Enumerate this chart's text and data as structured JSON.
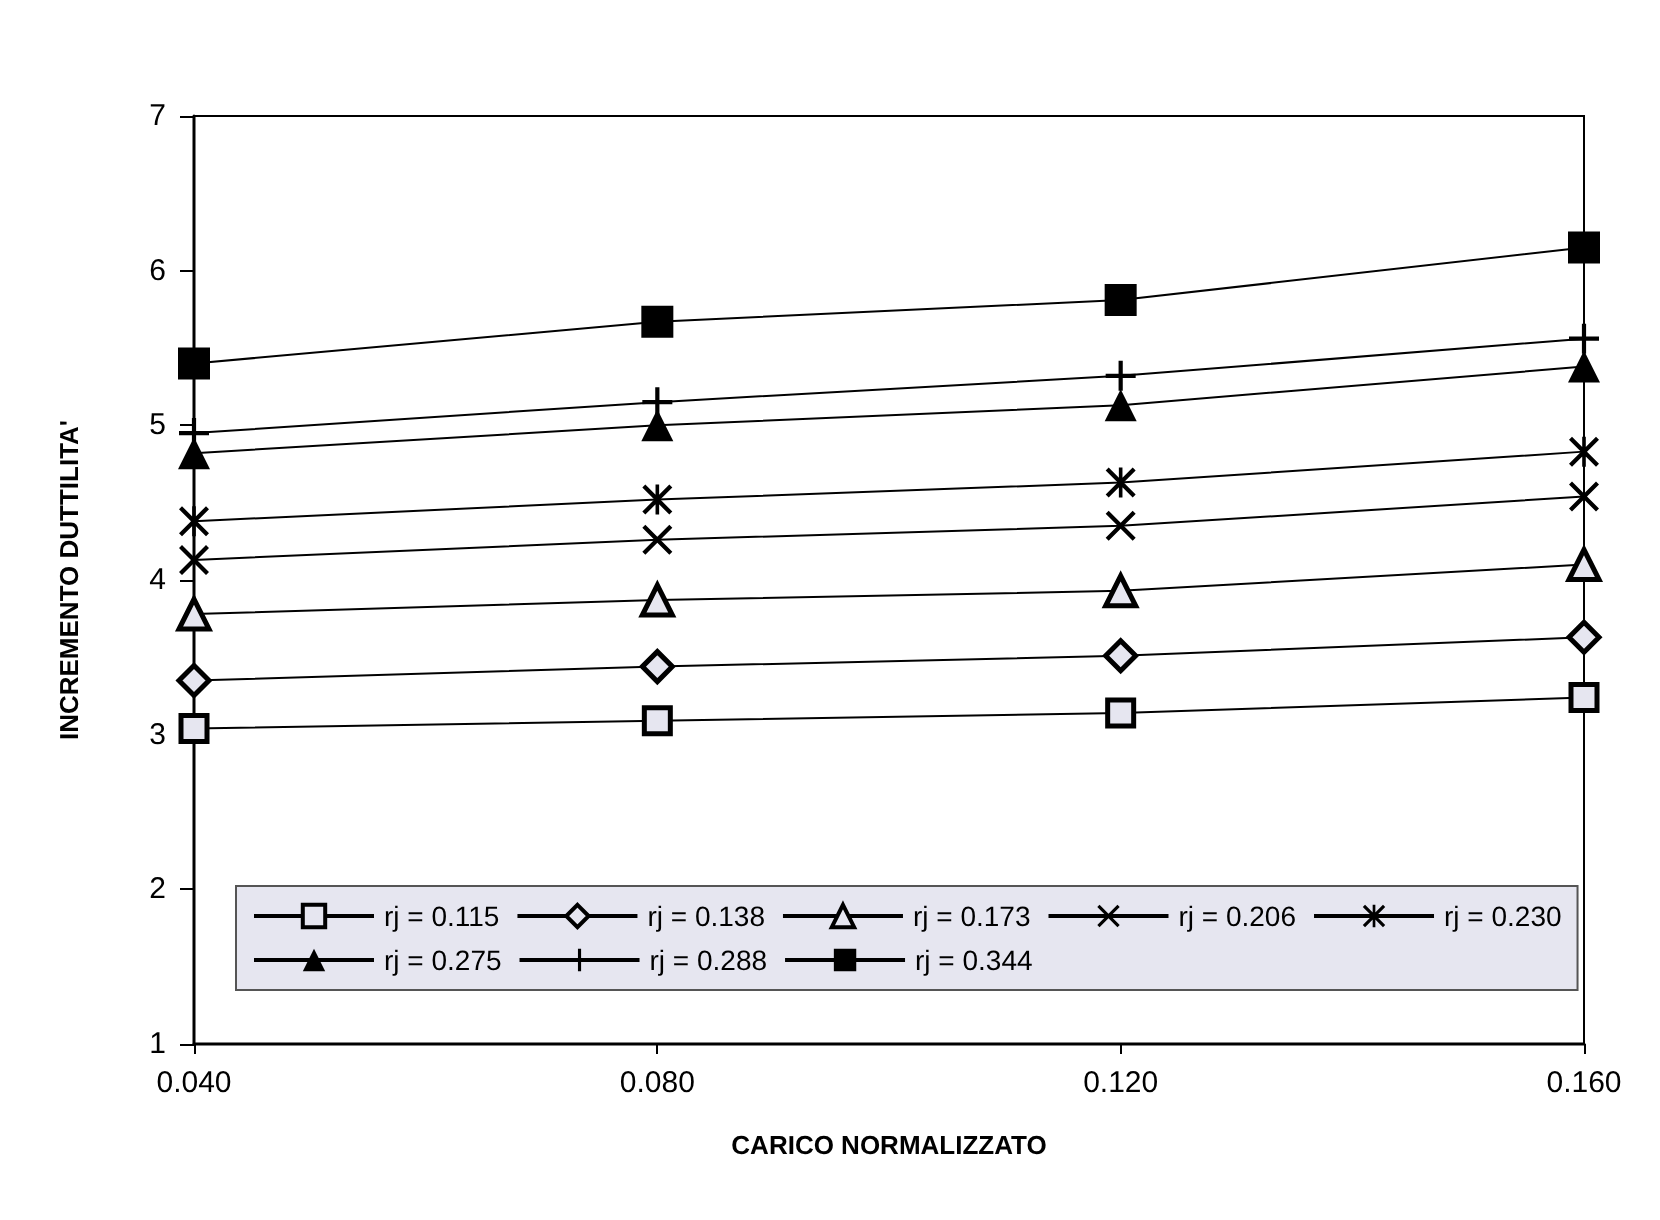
{
  "chart_data": {
    "type": "line",
    "xlabel": "CARICO NORMALIZZATO",
    "ylabel": "INCREMENTO DUTTILITA'",
    "x": [
      0.04,
      0.08,
      0.12,
      0.16
    ],
    "xlim": [
      0.04,
      0.16
    ],
    "xticks": [
      {
        "value": 0.04,
        "label": "0.040"
      },
      {
        "value": 0.08,
        "label": "0.080"
      },
      {
        "value": 0.12,
        "label": "0.120"
      },
      {
        "value": 0.16,
        "label": "0.160"
      }
    ],
    "ylim": [
      1,
      7
    ],
    "yticks": [
      1,
      2,
      3,
      4,
      5,
      6,
      7
    ],
    "grid": false,
    "legend": "bottom",
    "line_style": "solid",
    "series": [
      {
        "name": "rj = 0.115",
        "color": "#000000",
        "marker": "square_open",
        "values": [
          3.04,
          3.09,
          3.14,
          3.24
        ]
      },
      {
        "name": "rj = 0.138",
        "color": "#000000",
        "marker": "diamond_open",
        "values": [
          3.35,
          3.44,
          3.51,
          3.63
        ]
      },
      {
        "name": "rj = 0.173",
        "color": "#000000",
        "marker": "triangle_open",
        "values": [
          3.78,
          3.87,
          3.93,
          4.1
        ]
      },
      {
        "name": "rj = 0.206",
        "color": "#000000",
        "marker": "x",
        "values": [
          4.13,
          4.26,
          4.35,
          4.54
        ]
      },
      {
        "name": "rj = 0.230",
        "color": "#000000",
        "marker": "asterisk",
        "values": [
          4.38,
          4.52,
          4.63,
          4.83
        ]
      },
      {
        "name": "rj = 0.275",
        "color": "#000000",
        "marker": "triangle",
        "values": [
          4.82,
          5.0,
          5.13,
          5.38
        ]
      },
      {
        "name": "rj = 0.288",
        "color": "#000000",
        "marker": "plus",
        "values": [
          4.95,
          5.15,
          5.32,
          5.56
        ]
      },
      {
        "name": "rj = 0.344",
        "color": "#000000",
        "marker": "square",
        "values": [
          5.4,
          5.67,
          5.81,
          6.15
        ]
      }
    ]
  }
}
